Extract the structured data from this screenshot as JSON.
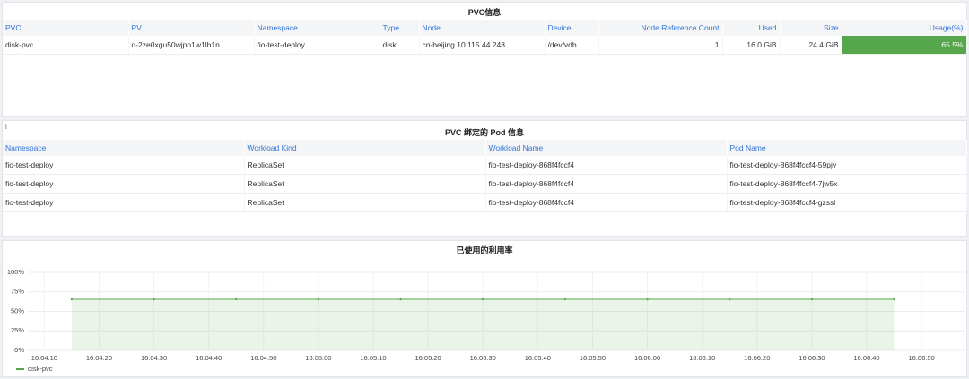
{
  "pvc_panel": {
    "title": "PVC信息",
    "columns": [
      "PVC",
      "PV",
      "Namespace",
      "Type",
      "Node",
      "Device",
      "Node Reference Count",
      "Used",
      "Size",
      "Usage(%)"
    ],
    "rows": [
      [
        "disk-pvc",
        "d-2ze0xgu50wjpo1w1lb1n",
        "fio-test-deploy",
        "disk",
        "cn-beijing.10.115.44.248",
        "/dev/vdb",
        "1",
        "16.0 GiB",
        "24.4 GiB",
        "65.5%"
      ]
    ]
  },
  "pod_panel": {
    "title": "PVC 绑定的 Pod 信息",
    "columns": [
      "Namespace",
      "Workload Kind",
      "Workload Name",
      "Pod Name"
    ],
    "rows": [
      [
        "fio-test-deploy",
        "ReplicaSet",
        "fio-test-deploy-868f4fccf4",
        "fio-test-deploy-868f4fccf4-59pjv"
      ],
      [
        "fio-test-deploy",
        "ReplicaSet",
        "fio-test-deploy-868f4fccf4",
        "fio-test-deploy-868f4fccf4-7jw5x"
      ],
      [
        "fio-test-deploy",
        "ReplicaSet",
        "fio-test-deploy-868f4fccf4",
        "fio-test-deploy-868f4fccf4-gzssl"
      ]
    ]
  },
  "chart_data": {
    "type": "line",
    "title": "已使用的利用率",
    "x": [
      "16:04:15",
      "16:04:30",
      "16:04:45",
      "16:05:00",
      "16:05:15",
      "16:05:30",
      "16:05:45",
      "16:06:00",
      "16:06:15",
      "16:06:30",
      "16:06:45"
    ],
    "series": [
      {
        "name": "disk-pvc",
        "color": "#56a64b",
        "values": [
          65.5,
          65.5,
          65.5,
          65.5,
          65.5,
          65.5,
          65.5,
          65.5,
          65.5,
          65.5,
          65.5
        ]
      }
    ],
    "xlim": [
      "16:04:07",
      "16:06:58"
    ],
    "xticks": [
      "16:04:10",
      "16:04:20",
      "16:04:30",
      "16:04:40",
      "16:04:50",
      "16:05:00",
      "16:05:10",
      "16:05:20",
      "16:05:30",
      "16:05:40",
      "16:05:50",
      "16:06:00",
      "16:06:10",
      "16:06:20",
      "16:06:30",
      "16:06:40",
      "16:06:50"
    ],
    "ylim": [
      0,
      100
    ],
    "yticks": [
      {
        "value": 0,
        "label": "0%"
      },
      {
        "value": 25,
        "label": "25%"
      },
      {
        "value": 50,
        "label": "50%"
      },
      {
        "value": 75,
        "label": "75%"
      },
      {
        "value": 100,
        "label": "100%"
      }
    ],
    "grid": true
  }
}
